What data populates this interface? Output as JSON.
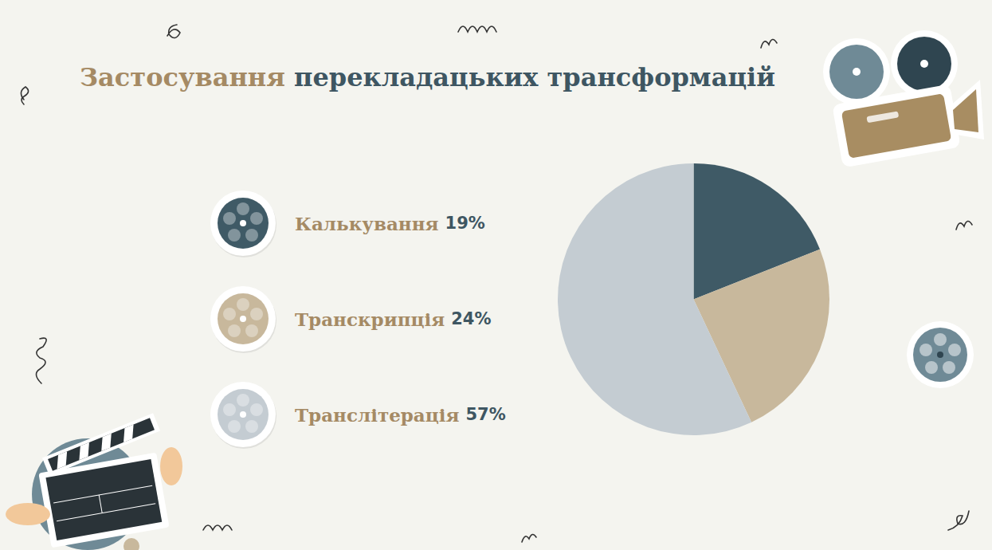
{
  "chart_data": {
    "type": "pie",
    "title": "Застосування перекладацьких трансформацій",
    "categories": [
      "Калькування",
      "Транскрипція",
      "Транслітерація"
    ],
    "values": [
      19,
      24,
      57
    ],
    "value_labels": [
      "19%",
      "24%",
      "57%"
    ],
    "colors": [
      "#3f5a66",
      "#c8b89c",
      "#c4ccd2"
    ],
    "legend": "left"
  }
}
